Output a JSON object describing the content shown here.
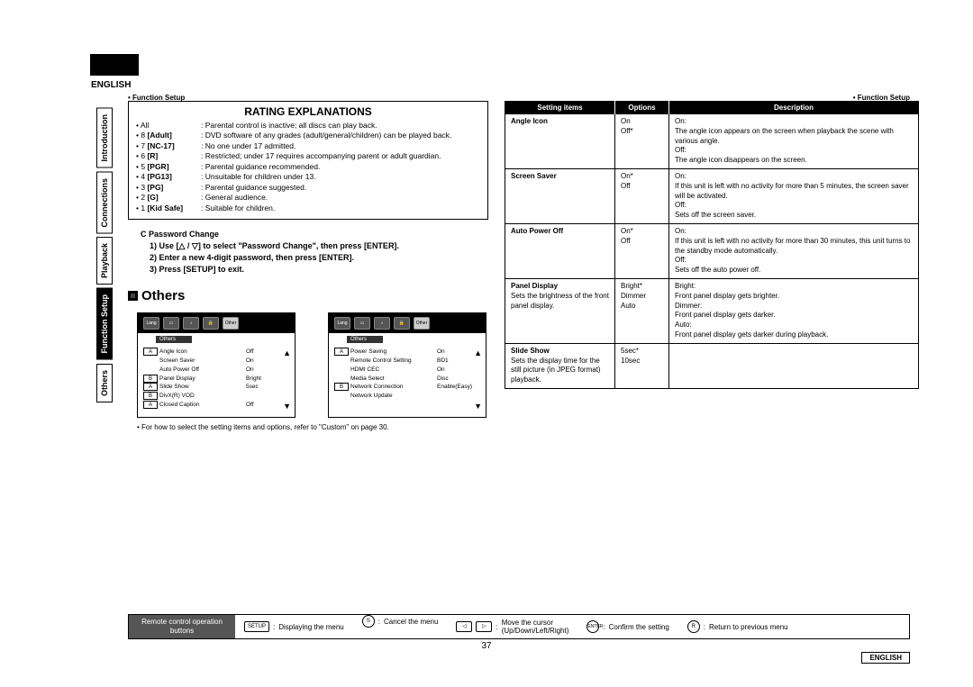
{
  "page": {
    "language": "ENGLISH",
    "section": "Function Setup",
    "number": "37",
    "bottom_lang": "ENGLISH"
  },
  "sidebar": [
    "Introduction",
    "Connections",
    "Playback",
    "Function Setup",
    "Others"
  ],
  "rating": {
    "title": "RATING EXPLANATIONS",
    "rows": [
      {
        "key": "All",
        "bold": "",
        "desc": "Parental control is inactive; all discs can play back."
      },
      {
        "key": "8",
        "bold": "[Adult]",
        "desc": "DVD software of any grades (adult/general/children) can be played back."
      },
      {
        "key": "7",
        "bold": "[NC-17]",
        "desc": "No one under 17 admitted."
      },
      {
        "key": "6",
        "bold": "[R]",
        "desc": "Restricted; under 17 requires accompanying parent or adult guardian."
      },
      {
        "key": "5",
        "bold": "[PGR]",
        "desc": "Parental guidance recommended."
      },
      {
        "key": "4",
        "bold": "[PG13]",
        "desc": "Unsuitable for children under 13."
      },
      {
        "key": "3",
        "bold": "[PG]",
        "desc": "Parental guidance suggested."
      },
      {
        "key": "2",
        "bold": "[G]",
        "desc": "General audience."
      },
      {
        "key": "1",
        "bold": "[Kid Safe]",
        "desc": "Suitable for children."
      }
    ]
  },
  "sectionC": {
    "header": "C   Password Change",
    "steps": [
      "1)  Use [△ / ▽] to select \"Password Change\", then press [ENTER].",
      "2)  Enter a new 4-digit password, then press [ENTER].",
      "3)  Press [SETUP] to exit."
    ]
  },
  "others": {
    "title": "Others",
    "tab_label": "Others"
  },
  "screen1": {
    "rows": [
      {
        "mark": "A",
        "name": "Angle Icon",
        "val": "Off"
      },
      {
        "mark": "",
        "name": "Screen Saver",
        "val": "On"
      },
      {
        "mark": "",
        "name": "Auto Power Off",
        "val": "On"
      },
      {
        "mark": "B",
        "name": "Panel Display",
        "val": "Bright"
      },
      {
        "mark": "A",
        "name": "Slide Show",
        "val": "5sec"
      },
      {
        "mark": "B",
        "name": "DivX(R) VOD",
        "val": ""
      },
      {
        "mark": "A",
        "name": "Closed Caption",
        "val": "Off"
      }
    ]
  },
  "screen2": {
    "rows": [
      {
        "mark": "A",
        "name": "Power Saving",
        "val": "On"
      },
      {
        "mark": "",
        "name": "Remote Control Setting",
        "val": "BD1"
      },
      {
        "mark": "",
        "name": "HDMI CEC",
        "val": "On"
      },
      {
        "mark": "",
        "name": "Media Select",
        "val": "Disc"
      },
      {
        "mark": "B",
        "name": "Network Connection",
        "val": "Enable(Easy)"
      },
      {
        "mark": "",
        "name": "Network Update",
        "val": ""
      }
    ]
  },
  "note": "For how to select the setting items and options, refer to \"Custom\" on page 30.",
  "table": {
    "headers": [
      "Setting items",
      "Options",
      "Description"
    ],
    "rows": [
      {
        "item": "Angle Icon",
        "sub": "",
        "opts": "On\nOff*",
        "desc": "On:\nThe angle icon appears on the screen when playback the scene with various angle.\nOff:\nThe angle icon disappears on the screen."
      },
      {
        "item": "Screen Saver",
        "sub": "",
        "opts": "On*\nOff",
        "desc": "On:\nIf this unit is left with no activity for more than 5 minutes, the screen saver will be activated.\nOff:\nSets off the screen saver."
      },
      {
        "item": "Auto Power Off",
        "sub": "",
        "opts": "On*\nOff",
        "desc": "On:\nIf this unit is left with no activity for more than 30 minutes, this unit turns to the standby mode automatically.\nOff:\nSets off the auto power off."
      },
      {
        "item": "Panel Display",
        "sub": "Sets the brightness of the front panel display.",
        "opts": "Bright*\nDimmer\nAuto",
        "desc": "Bright:\nFront panel display gets brighter.\nDimmer:\nFront panel display gets darker.\nAuto:\nFront panel display gets darker during playback."
      },
      {
        "item": "Slide Show",
        "sub": "Sets the display time for the still picture (in JPEG format) playback.",
        "opts": "5sec*\n10sec",
        "desc": ""
      }
    ]
  },
  "footer": {
    "label": "Remote control operation\nbuttons",
    "setup": "Displaying the menu",
    "cancel": "Cancel the menu",
    "cursor": "Move the cursor\n(Up/Down/Left/Right)",
    "enter": "Confirm the setting",
    "return": "Return to previous menu"
  }
}
